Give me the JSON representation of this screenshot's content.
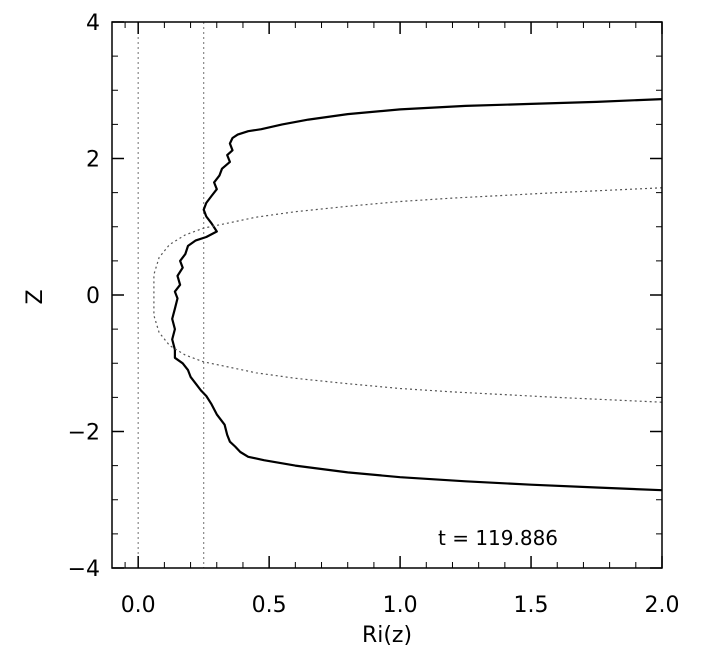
{
  "chart_data": {
    "type": "line",
    "xlabel": "Ri(z)",
    "ylabel": "Z",
    "xlim": [
      -0.1,
      2.0
    ],
    "ylim": [
      -4,
      4
    ],
    "x_ticks": [
      "0.0",
      "0.5",
      "1.0",
      "1.5",
      "2.0"
    ],
    "y_ticks": [
      "−4",
      "−2",
      "0",
      "2",
      "4"
    ],
    "annotation": "t  =  119.886",
    "reference_lines": [
      {
        "x": 0.0,
        "style": "dotted",
        "color": "#888888"
      },
      {
        "x": 0.25,
        "style": "dotted",
        "color": "#888888"
      }
    ],
    "series": [
      {
        "style": "solid",
        "color": "#000000",
        "points": [
          [
            2.0,
            2.87
          ],
          [
            1.75,
            2.83
          ],
          [
            1.5,
            2.8
          ],
          [
            1.25,
            2.77
          ],
          [
            1.0,
            2.72
          ],
          [
            0.8,
            2.65
          ],
          [
            0.65,
            2.57
          ],
          [
            0.55,
            2.5
          ],
          [
            0.47,
            2.43
          ],
          [
            0.42,
            2.4
          ],
          [
            0.38,
            2.35
          ],
          [
            0.36,
            2.3
          ],
          [
            0.35,
            2.22
          ],
          [
            0.36,
            2.12
          ],
          [
            0.34,
            2.05
          ],
          [
            0.35,
            1.95
          ],
          [
            0.32,
            1.85
          ],
          [
            0.31,
            1.75
          ],
          [
            0.29,
            1.65
          ],
          [
            0.3,
            1.55
          ],
          [
            0.28,
            1.45
          ],
          [
            0.26,
            1.35
          ],
          [
            0.25,
            1.25
          ],
          [
            0.26,
            1.15
          ],
          [
            0.28,
            1.05
          ],
          [
            0.3,
            0.93
          ],
          [
            0.26,
            0.85
          ],
          [
            0.22,
            0.8
          ],
          [
            0.19,
            0.72
          ],
          [
            0.18,
            0.6
          ],
          [
            0.16,
            0.5
          ],
          [
            0.17,
            0.4
          ],
          [
            0.15,
            0.28
          ],
          [
            0.16,
            0.15
          ],
          [
            0.14,
            0.05
          ],
          [
            0.15,
            -0.05
          ],
          [
            0.14,
            -0.2
          ],
          [
            0.13,
            -0.35
          ],
          [
            0.14,
            -0.5
          ],
          [
            0.13,
            -0.65
          ],
          [
            0.14,
            -0.8
          ],
          [
            0.14,
            -0.92
          ],
          [
            0.17,
            -1.0
          ],
          [
            0.19,
            -1.1
          ],
          [
            0.2,
            -1.2
          ],
          [
            0.22,
            -1.3
          ],
          [
            0.24,
            -1.4
          ],
          [
            0.26,
            -1.48
          ],
          [
            0.28,
            -1.6
          ],
          [
            0.3,
            -1.75
          ],
          [
            0.33,
            -1.9
          ],
          [
            0.34,
            -2.05
          ],
          [
            0.35,
            -2.15
          ],
          [
            0.37,
            -2.22
          ],
          [
            0.39,
            -2.3
          ],
          [
            0.42,
            -2.37
          ],
          [
            0.48,
            -2.42
          ],
          [
            0.6,
            -2.5
          ],
          [
            0.8,
            -2.6
          ],
          [
            1.0,
            -2.67
          ],
          [
            1.25,
            -2.73
          ],
          [
            1.5,
            -2.78
          ],
          [
            1.75,
            -2.82
          ],
          [
            2.0,
            -2.86
          ]
        ]
      },
      {
        "style": "dotted",
        "color": "#555555",
        "points": [
          [
            2.0,
            1.57
          ],
          [
            1.6,
            1.5
          ],
          [
            1.2,
            1.42
          ],
          [
            1.0,
            1.37
          ],
          [
            0.8,
            1.3
          ],
          [
            0.6,
            1.22
          ],
          [
            0.45,
            1.14
          ],
          [
            0.35,
            1.06
          ],
          [
            0.25,
            0.98
          ],
          [
            0.18,
            0.88
          ],
          [
            0.12,
            0.74
          ],
          [
            0.08,
            0.55
          ],
          [
            0.06,
            0.3
          ],
          [
            0.06,
            0.0
          ],
          [
            0.06,
            -0.3
          ],
          [
            0.08,
            -0.55
          ],
          [
            0.12,
            -0.74
          ],
          [
            0.18,
            -0.88
          ],
          [
            0.25,
            -0.98
          ],
          [
            0.35,
            -1.06
          ],
          [
            0.45,
            -1.14
          ],
          [
            0.6,
            -1.22
          ],
          [
            0.8,
            -1.3
          ],
          [
            1.0,
            -1.37
          ],
          [
            1.2,
            -1.42
          ],
          [
            1.6,
            -1.5
          ],
          [
            2.0,
            -1.57
          ]
        ]
      }
    ]
  }
}
